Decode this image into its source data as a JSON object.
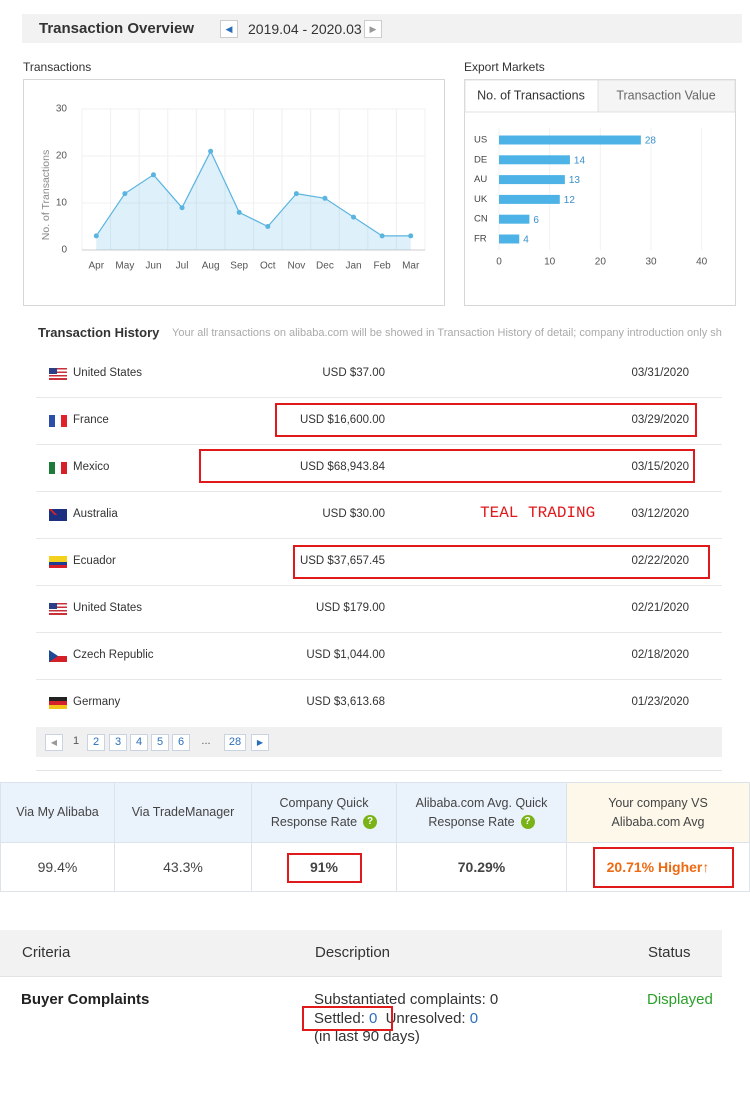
{
  "header": {
    "title": "Transaction Overview",
    "period": "2019.04 - 2020.03"
  },
  "chart_data": [
    {
      "type": "line",
      "title": "Transactions",
      "y_label": "No. of Transactions",
      "categories": [
        "Apr",
        "May",
        "Jun",
        "Jul",
        "Aug",
        "Sep",
        "Oct",
        "Nov",
        "Dec",
        "Jan",
        "Feb",
        "Mar"
      ],
      "values": [
        3,
        12,
        16,
        9,
        21,
        8,
        5,
        12,
        11,
        7,
        3,
        3
      ],
      "color": "#5ab4e0",
      "ylim": [
        0,
        30
      ],
      "yticks": [
        0,
        10,
        20,
        30
      ],
      "grid": true
    },
    {
      "type": "bar",
      "orientation": "horizontal",
      "title": "Export Markets",
      "tabs": [
        "No. of Transactions",
        "Transaction Value"
      ],
      "categories": [
        "US",
        "DE",
        "AU",
        "UK",
        "CN",
        "FR"
      ],
      "values": [
        28,
        14,
        13,
        12,
        6,
        4
      ],
      "color": "#4db3e6",
      "xlim": [
        0,
        45
      ],
      "xticks": [
        0,
        10,
        20,
        30,
        40
      ],
      "grid": true
    }
  ],
  "history": {
    "title": "Transaction History",
    "subtitle": "Your all transactions on alibaba.com will be showed in Transaction History of detail; company introduction only sh",
    "rows": [
      [
        "United States",
        "USD $37.00",
        "03/31/2020"
      ],
      [
        "France",
        "USD $16,600.00",
        "03/29/2020"
      ],
      [
        "Mexico",
        "USD $68,943.84",
        "03/15/2020"
      ],
      [
        "Australia",
        "USD $30.00",
        "03/12/2020"
      ],
      [
        "Ecuador",
        "USD $37,657.45",
        "02/22/2020"
      ],
      [
        "United States",
        "USD $179.00",
        "02/21/2020"
      ],
      [
        "Czech Republic",
        "USD $1,044.00",
        "02/18/2020"
      ],
      [
        "Germany",
        "USD $3,613.68",
        "01/23/2020"
      ]
    ],
    "annotation": "TEAL TRADING",
    "pages": [
      "1",
      "2",
      "3",
      "4",
      "5",
      "6",
      "...",
      "28"
    ]
  },
  "response": {
    "headers": [
      "Via My Alibaba",
      "Via TradeManager",
      "Company Quick Response Rate",
      "Alibaba.com Avg. Quick Response Rate",
      "Your company VS Alibaba.com Avg"
    ],
    "values": [
      "99.4%",
      "43.3%",
      "91%",
      "70.29%",
      "20.71% Higher↑"
    ]
  },
  "criteria": {
    "headers": [
      "Criteria",
      "Description",
      "Status"
    ],
    "row": {
      "criteria": "Buyer Complaints",
      "substantiated": "Substantiated complaints: 0",
      "settled_label": "Settled:",
      "settled": "0",
      "unresolved_label": "Unresolved:",
      "unresolved": "0",
      "period": "(in last 90 days)",
      "status": "Displayed"
    }
  }
}
